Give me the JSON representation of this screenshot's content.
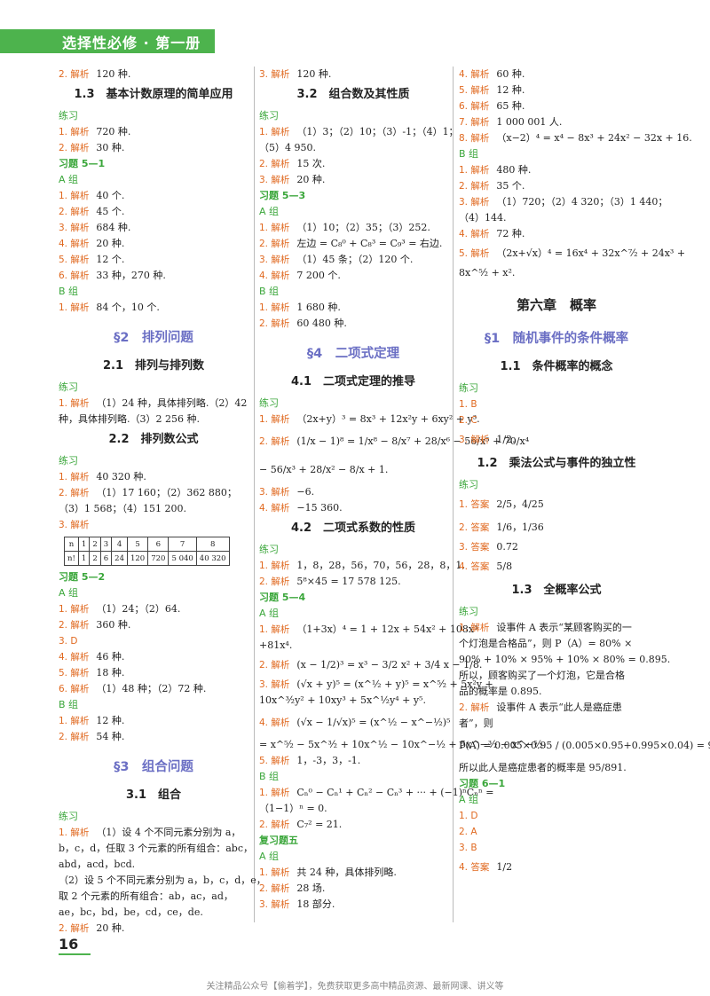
{
  "header": {
    "title": "选择性必修 · 第一册"
  },
  "footer": {
    "page_number": "16",
    "note": "关注精品公众号【偷着学】，免费获取更多高中精品资源、最新网课、讲义等"
  },
  "col1": [
    {
      "k": "line",
      "l": "2. 解析",
      "t": "120 种."
    },
    {
      "k": "h2",
      "t": "1.3　基本计数原理的简单应用"
    },
    {
      "k": "green",
      "t": "练习"
    },
    {
      "k": "line",
      "l": "1. 解析",
      "t": "720 种."
    },
    {
      "k": "line",
      "l": "2. 解析",
      "t": "30 种."
    },
    {
      "k": "greenb",
      "t": "习题 5—1"
    },
    {
      "k": "green",
      "t": "A 组"
    },
    {
      "k": "line",
      "l": "1. 解析",
      "t": "40 个."
    },
    {
      "k": "line",
      "l": "2. 解析",
      "t": "45 个."
    },
    {
      "k": "line",
      "l": "3. 解析",
      "t": "684 种."
    },
    {
      "k": "line",
      "l": "4. 解析",
      "t": "20 种."
    },
    {
      "k": "line",
      "l": "5. 解析",
      "t": "12 个."
    },
    {
      "k": "line",
      "l": "6. 解析",
      "t": "33 种，270 种."
    },
    {
      "k": "green",
      "t": "B 组"
    },
    {
      "k": "line",
      "l": "1. 解析",
      "t": "84 个，10 个."
    },
    {
      "k": "h1",
      "t": "§2　排列问题"
    },
    {
      "k": "h2",
      "t": "2.1　排列与排列数"
    },
    {
      "k": "green",
      "t": "练习"
    },
    {
      "k": "line",
      "l": "1. 解析",
      "t": "（1）24 种，具体排列略.（2）42"
    },
    {
      "k": "line",
      "l": "",
      "t": "种，具体排列略.（3）2 256 种."
    },
    {
      "k": "h2",
      "t": "2.2　排列数公式"
    },
    {
      "k": "green",
      "t": "练习"
    },
    {
      "k": "line",
      "l": "1. 解析",
      "t": "40 320 种."
    },
    {
      "k": "line",
      "l": "2. 解析",
      "t": "（1）17 160；（2）362 880；"
    },
    {
      "k": "line",
      "l": "",
      "t": "（3）1 568；（4）151 200."
    },
    {
      "k": "line",
      "l": "3. 解析",
      "t": ""
    },
    {
      "k": "table"
    },
    {
      "k": "greenb",
      "t": "习题 5—2"
    },
    {
      "k": "green",
      "t": "A 组"
    },
    {
      "k": "line",
      "l": "1. 解析",
      "t": "（1）24；（2）64."
    },
    {
      "k": "line",
      "l": "2. 解析",
      "t": "360 种."
    },
    {
      "k": "line",
      "l": "3. D",
      "t": ""
    },
    {
      "k": "line",
      "l": "4. 解析",
      "t": "46 种."
    },
    {
      "k": "line",
      "l": "5. 解析",
      "t": "18 种."
    },
    {
      "k": "line",
      "l": "6. 解析",
      "t": "（1）48 种；（2）72 种."
    },
    {
      "k": "green",
      "t": "B 组"
    },
    {
      "k": "line",
      "l": "1. 解析",
      "t": "12 种."
    },
    {
      "k": "line",
      "l": "2. 解析",
      "t": "54 种."
    },
    {
      "k": "h1",
      "t": "§3　组合问题"
    },
    {
      "k": "h2",
      "t": "3.1　组合"
    },
    {
      "k": "green",
      "t": "练习"
    },
    {
      "k": "line",
      "l": "1. 解析",
      "t": "（1）设 4 个不同元素分别为 a，"
    },
    {
      "k": "line",
      "l": "",
      "t": "b，c，d，任取 3 个元素的所有组合：abc，"
    },
    {
      "k": "line",
      "l": "",
      "t": "abd，acd，bcd."
    },
    {
      "k": "line",
      "l": "",
      "t": "（2）设 5 个不同元素分别为 a，b，c，d，e，"
    },
    {
      "k": "line",
      "l": "",
      "t": "取 2 个元素的所有组合：ab，ac，ad，"
    },
    {
      "k": "line",
      "l": "",
      "t": "ae，bc，bd，be，cd，ce，de."
    },
    {
      "k": "line",
      "l": "2. 解析",
      "t": "20 种."
    }
  ],
  "perm_table": {
    "row1": [
      "n",
      "1",
      "2",
      "3",
      "4",
      "5",
      "6",
      "7",
      "8"
    ],
    "row2": [
      "n!",
      "1",
      "2",
      "6",
      "24",
      "120",
      "720",
      "5 040",
      "40 320"
    ]
  },
  "col2": [
    {
      "k": "line",
      "l": "3. 解析",
      "t": "120 种."
    },
    {
      "k": "h2",
      "t": "3.2　组合数及其性质"
    },
    {
      "k": "green",
      "t": "练习"
    },
    {
      "k": "line",
      "l": "1. 解析",
      "t": "（1）3；（2）10；（3）-1；（4）1；"
    },
    {
      "k": "line",
      "l": "",
      "t": "（5）4 950."
    },
    {
      "k": "line",
      "l": "2. 解析",
      "t": "15 次."
    },
    {
      "k": "line",
      "l": "3. 解析",
      "t": "20 种."
    },
    {
      "k": "greenb",
      "t": "习题 5—3"
    },
    {
      "k": "green",
      "t": "A 组"
    },
    {
      "k": "line",
      "l": "1. 解析",
      "t": "（1）10；（2）35；（3）252."
    },
    {
      "k": "line",
      "l": "2. 解析",
      "t": "左边 = C₈⁰ + C₈³ = C₉³ = 右边."
    },
    {
      "k": "line",
      "l": "3. 解析",
      "t": "（1）45 条；（2）120 个."
    },
    {
      "k": "line",
      "l": "4. 解析",
      "t": "7 200 个."
    },
    {
      "k": "green",
      "t": "B 组"
    },
    {
      "k": "line",
      "l": "1. 解析",
      "t": "1 680 种."
    },
    {
      "k": "line",
      "l": "2. 解析",
      "t": "60 480 种."
    },
    {
      "k": "h1",
      "t": "§4　二项式定理"
    },
    {
      "k": "h2",
      "t": "4.1　二项式定理的推导"
    },
    {
      "k": "green",
      "t": "练习"
    },
    {
      "k": "line",
      "l": "1. 解析",
      "t": "（2x+y）³ = 8x³ + 12x²y + 6xy² + y³."
    },
    {
      "k": "xtall",
      "l": "2. 解析",
      "t": "(1/x − 1)⁸ = 1/x⁸ − 8/x⁷ + 28/x⁶ − 56/x⁵ + 70/x⁴"
    },
    {
      "k": "xtall",
      "l": "",
      "t": "− 56/x³ + 28/x² − 8/x + 1."
    },
    {
      "k": "line",
      "l": "3. 解析",
      "t": "−6."
    },
    {
      "k": "line",
      "l": "4. 解析",
      "t": "−15 360."
    },
    {
      "k": "h2",
      "t": "4.2　二项式系数的性质"
    },
    {
      "k": "green",
      "t": "练习"
    },
    {
      "k": "line",
      "l": "1. 解析",
      "t": "1，8，28，56，70，56，28，8，1."
    },
    {
      "k": "line",
      "l": "2. 解析",
      "t": "5⁸×45 = 17 578 125."
    },
    {
      "k": "greenb",
      "t": "习题 5—4"
    },
    {
      "k": "green",
      "t": "A 组"
    },
    {
      "k": "line",
      "l": "1. 解析",
      "t": "（1+3x）⁴ = 1 + 12x + 54x² + 108x³"
    },
    {
      "k": "line",
      "l": "",
      "t": "+81x⁴."
    },
    {
      "k": "tall",
      "l": "2. 解析",
      "t": "(x − 1/2)³ = x³ − 3/2 x² + 3/4 x − 1/8."
    },
    {
      "k": "line",
      "l": "3. 解析",
      "t": "(√x + y)⁵ = (x^½ + y)⁵ = x^⁵⁄₂ + 5x²y +"
    },
    {
      "k": "line",
      "l": "",
      "t": "10x^³⁄₂y² + 10xy³ + 5x^½y⁴ + y⁵."
    },
    {
      "k": "xtall",
      "l": "4. 解析",
      "t": "(√x − 1/√x)⁵ = (x^½ − x^−½)⁵"
    },
    {
      "k": "line",
      "l": "",
      "t": "= x^⁵⁄₂ − 5x^³⁄₂ + 10x^½ − 10x^−½ + 5x^−³⁄₂ − x^−⁵⁄₂."
    },
    {
      "k": "line",
      "l": "5. 解析",
      "t": "1，-3，3，-1."
    },
    {
      "k": "green",
      "t": "B 组"
    },
    {
      "k": "line",
      "l": "1. 解析",
      "t": "Cₙ⁰ − Cₙ¹ + Cₙ² − Cₙ³ + ··· + (−1)ⁿCₙⁿ ="
    },
    {
      "k": "line",
      "l": "",
      "t": "（1−1）ⁿ = 0."
    },
    {
      "k": "line",
      "l": "2. 解析",
      "t": "C₇² = 21."
    },
    {
      "k": "greenb",
      "t": "复习题五"
    },
    {
      "k": "green",
      "t": "A 组"
    },
    {
      "k": "line",
      "l": "1. 解析",
      "t": "共 24 种，具体排列略."
    },
    {
      "k": "line",
      "l": "2. 解析",
      "t": "28 场."
    },
    {
      "k": "line",
      "l": "3. 解析",
      "t": "18 部分."
    }
  ],
  "col3": [
    {
      "k": "line",
      "l": "4. 解析",
      "t": "60 种."
    },
    {
      "k": "line",
      "l": "5. 解析",
      "t": "12 种."
    },
    {
      "k": "line",
      "l": "6. 解析",
      "t": "65 种."
    },
    {
      "k": "line",
      "l": "7. 解析",
      "t": "1 000 001 人."
    },
    {
      "k": "line",
      "l": "8. 解析",
      "t": "（x−2）⁴ = x⁴ − 8x³ + 24x² − 32x + 16."
    },
    {
      "k": "green",
      "t": "B 组"
    },
    {
      "k": "line",
      "l": "1. 解析",
      "t": "480 种."
    },
    {
      "k": "line",
      "l": "2. 解析",
      "t": "35 个."
    },
    {
      "k": "line",
      "l": "3. 解析",
      "t": "（1）720；（2）4 320；（3）1 440；"
    },
    {
      "k": "line",
      "l": "",
      "t": "（4）144."
    },
    {
      "k": "line",
      "l": "4. 解析",
      "t": "72 种."
    },
    {
      "k": "tall",
      "l": "5. 解析",
      "t": "（2x+√x）⁴ = 16x⁴ + 32x^⁷⁄₂ + 24x³ +"
    },
    {
      "k": "line",
      "l": "",
      "t": "8x^⁵⁄₂ + x²."
    },
    {
      "k": "h0",
      "t": "第六章　概率"
    },
    {
      "k": "h1",
      "t": "§1　随机事件的条件概率"
    },
    {
      "k": "h2",
      "t": "1.1　条件概率的概念"
    },
    {
      "k": "green",
      "t": "练习"
    },
    {
      "k": "line",
      "l": "1. B",
      "t": ""
    },
    {
      "k": "line",
      "l": "2. C",
      "t": ""
    },
    {
      "k": "tall",
      "l": "3. 解析",
      "t": "1/2."
    },
    {
      "k": "h2",
      "t": "1.2　乘法公式与事件的独立性"
    },
    {
      "k": "green",
      "t": "练习"
    },
    {
      "k": "tall",
      "l": "1. 答案",
      "t": "2/5，4/25"
    },
    {
      "k": "tall",
      "l": "2. 答案",
      "t": "1/6，1/36"
    },
    {
      "k": "line",
      "l": "3. 答案",
      "t": "0.72"
    },
    {
      "k": "tall",
      "l": "4. 答案",
      "t": "5/8"
    },
    {
      "k": "h2",
      "t": "1.3　全概率公式"
    },
    {
      "k": "green",
      "t": "练习"
    },
    {
      "k": "line",
      "l": "1. 解析",
      "t": "设事件 A 表示“某顾客购买的一"
    },
    {
      "k": "line",
      "l": "",
      "t": "个灯泡是合格品”，则 P（A）= 80% ×"
    },
    {
      "k": "line",
      "l": "",
      "t": "90% + 10% × 95% + 10% × 80% = 0.895."
    },
    {
      "k": "line",
      "l": "",
      "t": "所以，顾客购买了一个灯泡，它是合格"
    },
    {
      "k": "line",
      "l": "",
      "t": "品的概率是 0.895."
    },
    {
      "k": "line",
      "l": "2. 解析",
      "t": "设事件 A 表示“此人是癌症患"
    },
    {
      "k": "line",
      "l": "",
      "t": "者”，则"
    },
    {
      "k": "xtall",
      "l": "",
      "t": "P(A) = 0.005×0.95 / (0.005×0.95+0.995×0.04) = 95/891."
    },
    {
      "k": "line",
      "l": "",
      "t": "所以此人是癌症患者的概率是 95/891."
    },
    {
      "k": "greenb",
      "t": "习题 6—1"
    },
    {
      "k": "green",
      "t": "A 组"
    },
    {
      "k": "line",
      "l": "1. D",
      "t": ""
    },
    {
      "k": "line",
      "l": "2. A",
      "t": ""
    },
    {
      "k": "line",
      "l": "3. B",
      "t": ""
    },
    {
      "k": "tall",
      "l": "4. 答案",
      "t": "1/2"
    }
  ]
}
